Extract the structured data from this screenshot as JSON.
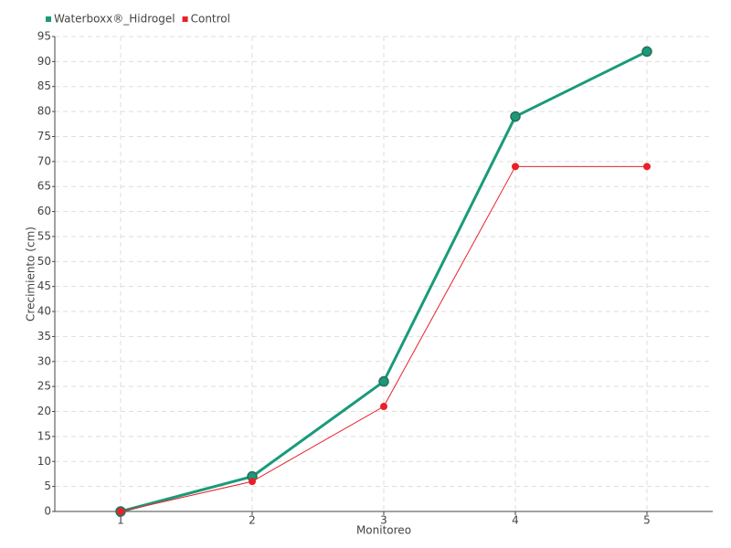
{
  "chart_data": {
    "type": "line",
    "x_label": "Monitoreo",
    "y_label": "Crecimiento (cm)",
    "categories": [
      "1",
      "2",
      "3",
      "4",
      "5"
    ],
    "series": [
      {
        "name": "Waterboxx®_Hidrogel",
        "color": "#1a9a7a",
        "values": [
          0,
          7,
          26,
          79,
          92
        ]
      },
      {
        "name": "Control",
        "color": "#e8202a",
        "values": [
          0,
          6,
          21,
          69,
          69
        ]
      }
    ],
    "ylim": [
      0,
      95
    ],
    "yticks": [
      0,
      5,
      10,
      15,
      20,
      25,
      30,
      35,
      40,
      45,
      50,
      55,
      60,
      65,
      70,
      75,
      80,
      85,
      90,
      95
    ],
    "grid": true
  }
}
